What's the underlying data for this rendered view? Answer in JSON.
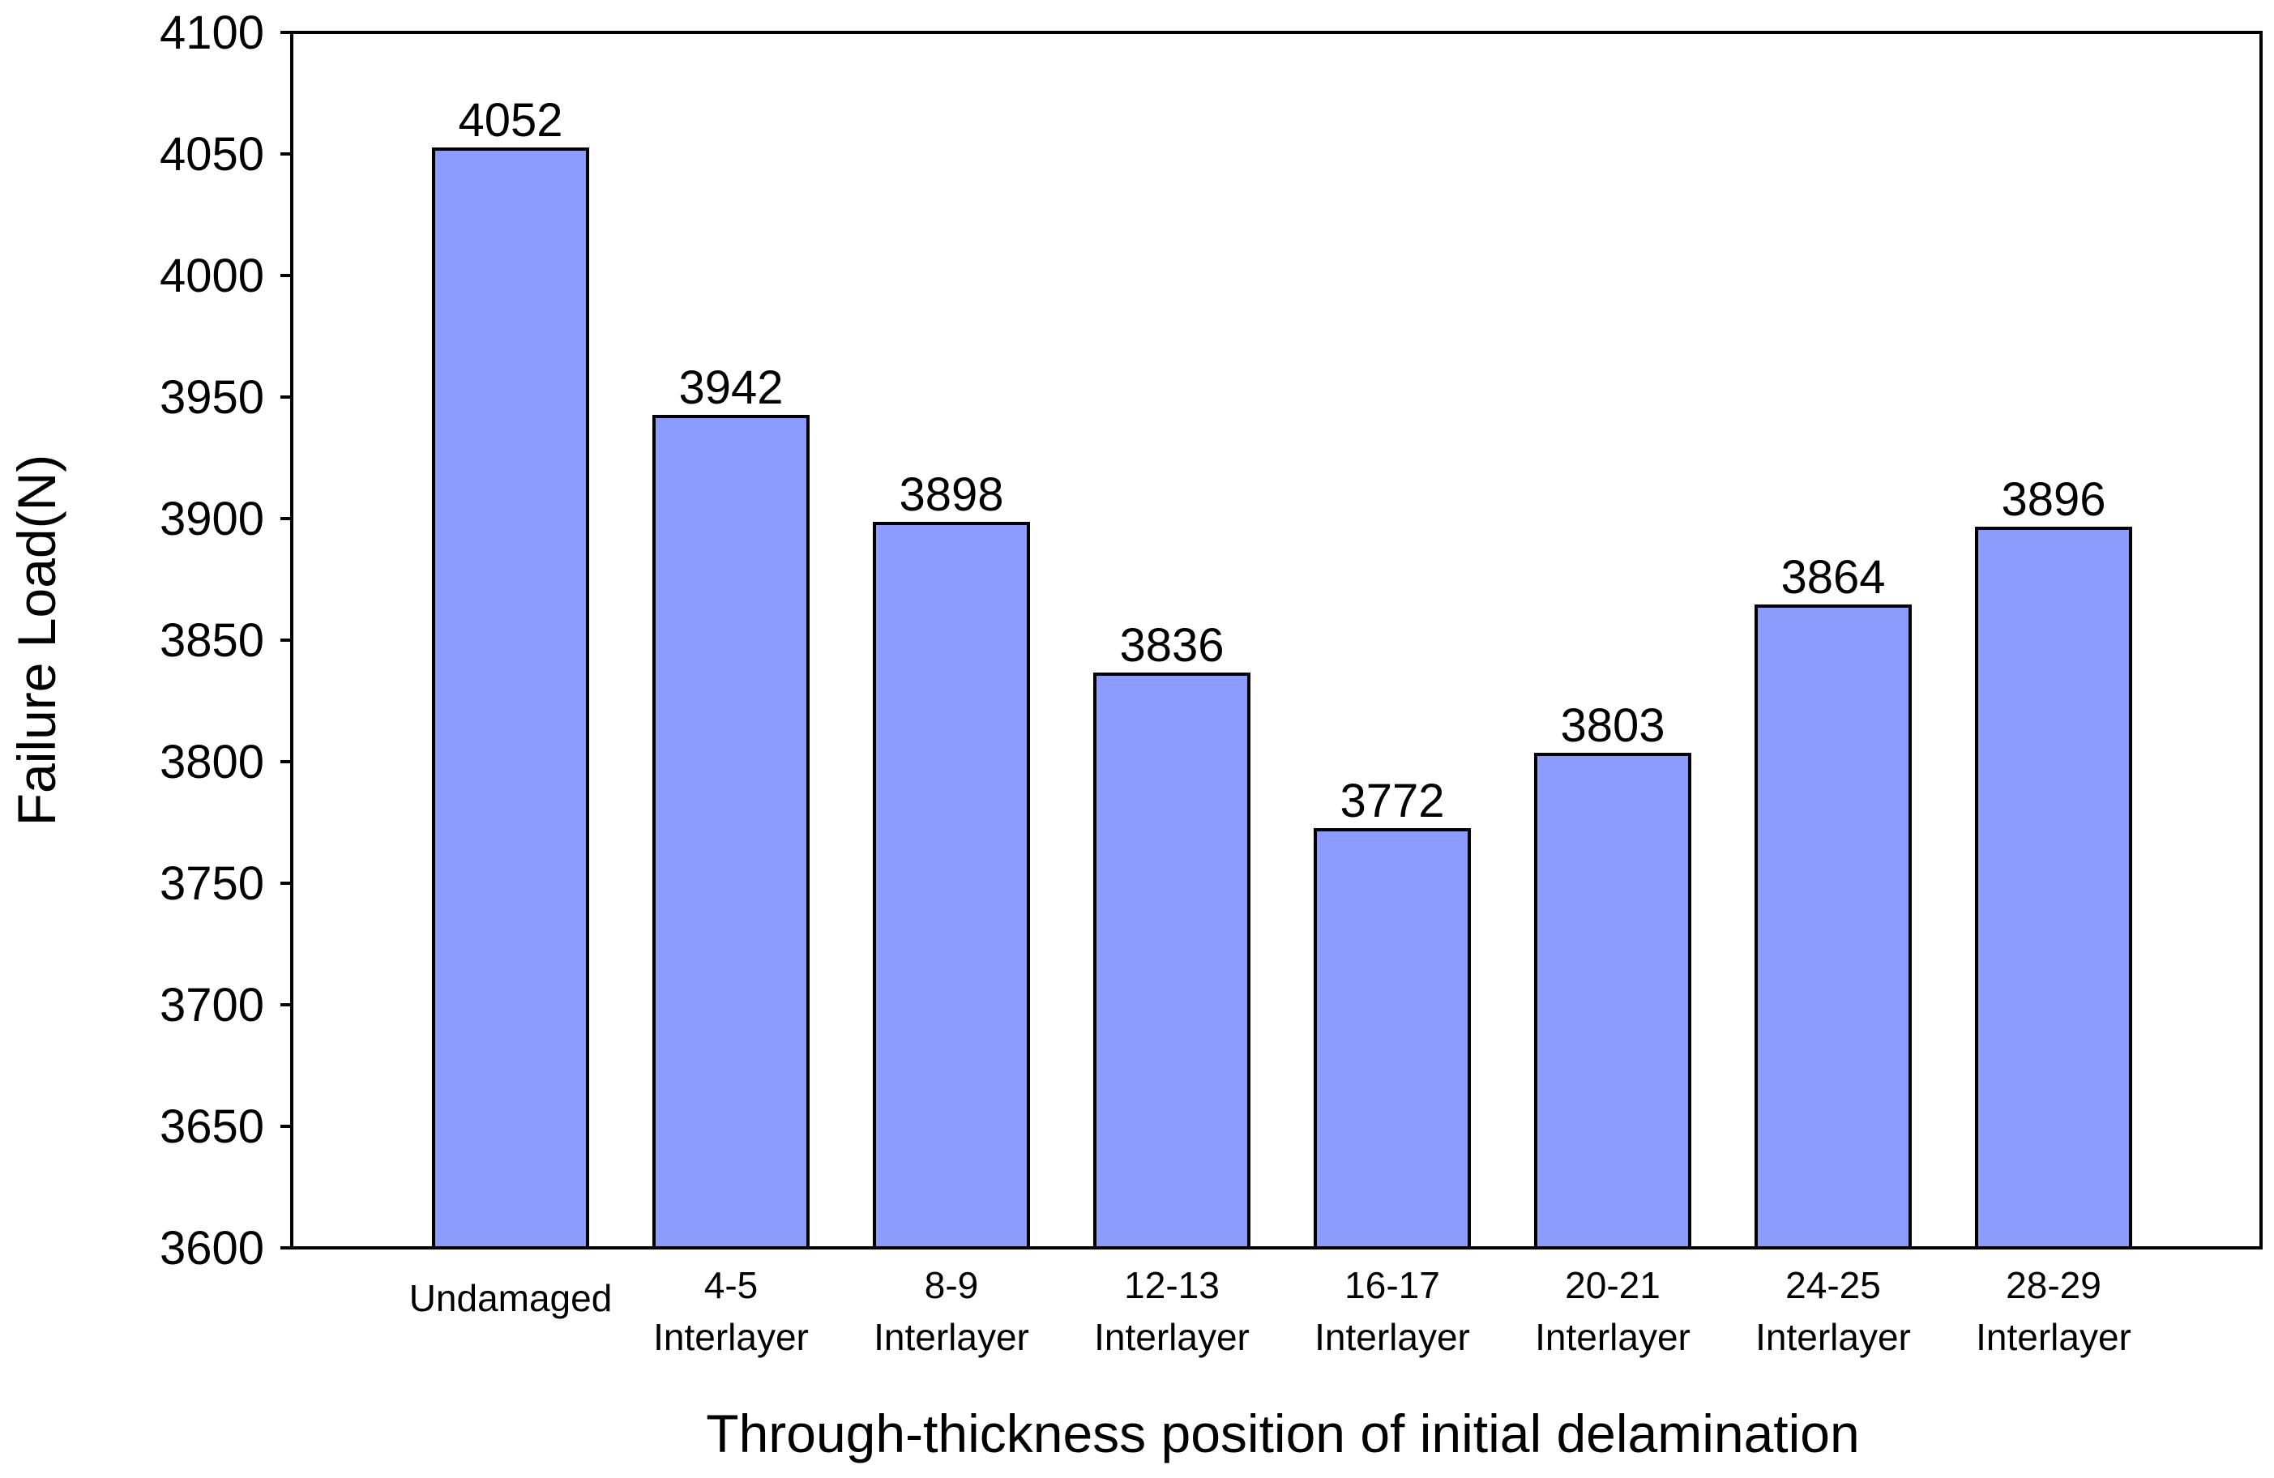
{
  "chart_data": {
    "type": "bar",
    "title": "",
    "xlabel": "Through-thickness position of initial delamination",
    "ylabel": "Failure Load(N)",
    "ylim": [
      3600,
      4100
    ],
    "yticks": [
      3600,
      3650,
      3700,
      3750,
      3800,
      3850,
      3900,
      3950,
      4000,
      4050,
      4100
    ],
    "grid": false,
    "legend": "none",
    "categories": [
      [
        "Undamaged"
      ],
      [
        "4-5",
        "Interlayer"
      ],
      [
        "8-9",
        "Interlayer"
      ],
      [
        "12-13",
        "Interlayer"
      ],
      [
        "16-17",
        "Interlayer"
      ],
      [
        "20-21",
        "Interlayer"
      ],
      [
        "24-25",
        "Interlayer"
      ],
      [
        "28-29",
        "Interlayer"
      ]
    ],
    "values": [
      4052,
      3942,
      3898,
      3836,
      3772,
      3803,
      3864,
      3896
    ],
    "data_labels": [
      "4052",
      "3942",
      "3898",
      "3836",
      "3772",
      "3803",
      "3864",
      "3896"
    ],
    "colors": {
      "bar_fill": "#8c9cfc",
      "bar_stroke": "#000000",
      "axis": "#000000",
      "background": "#ffffff"
    }
  }
}
